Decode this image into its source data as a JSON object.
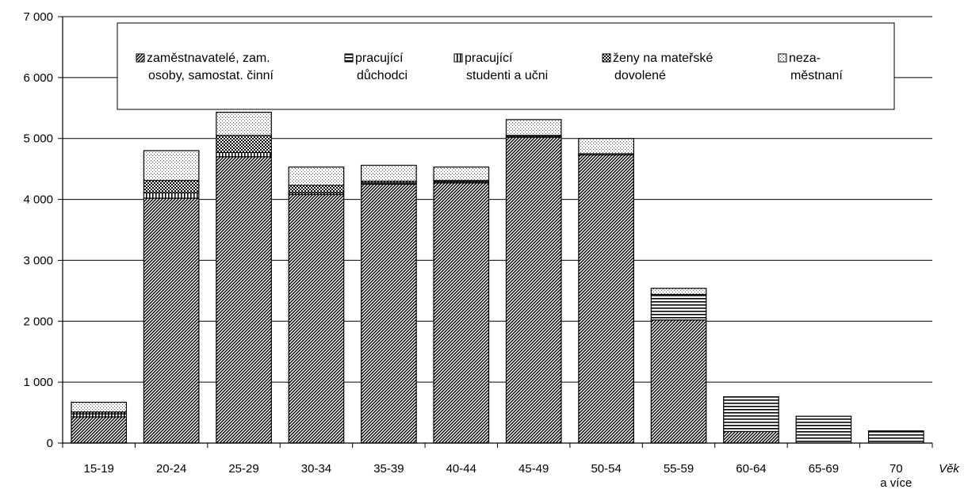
{
  "chart_data": {
    "type": "bar",
    "stacked": true,
    "categories": [
      "15-19",
      "20-24",
      "25-29",
      "30-34",
      "35-39",
      "40-44",
      "45-49",
      "50-54",
      "55-59",
      "60-64",
      "65-69",
      "70 a více"
    ],
    "xlabel": "Věk",
    "ylabel": "",
    "ylim": [
      0,
      7000
    ],
    "yticks": [
      "0",
      "1 000",
      "2 000",
      "3 000",
      "4 000",
      "5 000",
      "6 000",
      "7 000"
    ],
    "grid": true,
    "legend_placement": "top-center",
    "series": [
      {
        "name_lines": [
          "zaměstnavatelé, zam.",
          "osoby, samostat. činní"
        ],
        "pattern": "diagonal",
        "values": [
          430,
          4020,
          4700,
          4080,
          4250,
          4270,
          5020,
          4730,
          2020,
          190,
          0,
          0
        ]
      },
      {
        "name_lines": [
          "pracující",
          "důchodci"
        ],
        "pattern": "horizontal",
        "values": [
          0,
          0,
          0,
          0,
          0,
          0,
          0,
          0,
          420,
          570,
          440,
          200
        ]
      },
      {
        "name_lines": [
          "pracující",
          "studenti a učni"
        ],
        "pattern": "vertical",
        "values": [
          50,
          90,
          70,
          30,
          20,
          20,
          20,
          20,
          0,
          0,
          0,
          0
        ]
      },
      {
        "name_lines": [
          "ženy na mateřské",
          "dovolené"
        ],
        "pattern": "checker",
        "values": [
          30,
          200,
          280,
          120,
          30,
          20,
          10,
          0,
          0,
          0,
          0,
          0
        ]
      },
      {
        "name_lines": [
          "neza-",
          "městnaní"
        ],
        "pattern": "dots",
        "values": [
          160,
          490,
          380,
          300,
          260,
          220,
          260,
          250,
          100,
          0,
          0,
          0
        ]
      }
    ]
  }
}
